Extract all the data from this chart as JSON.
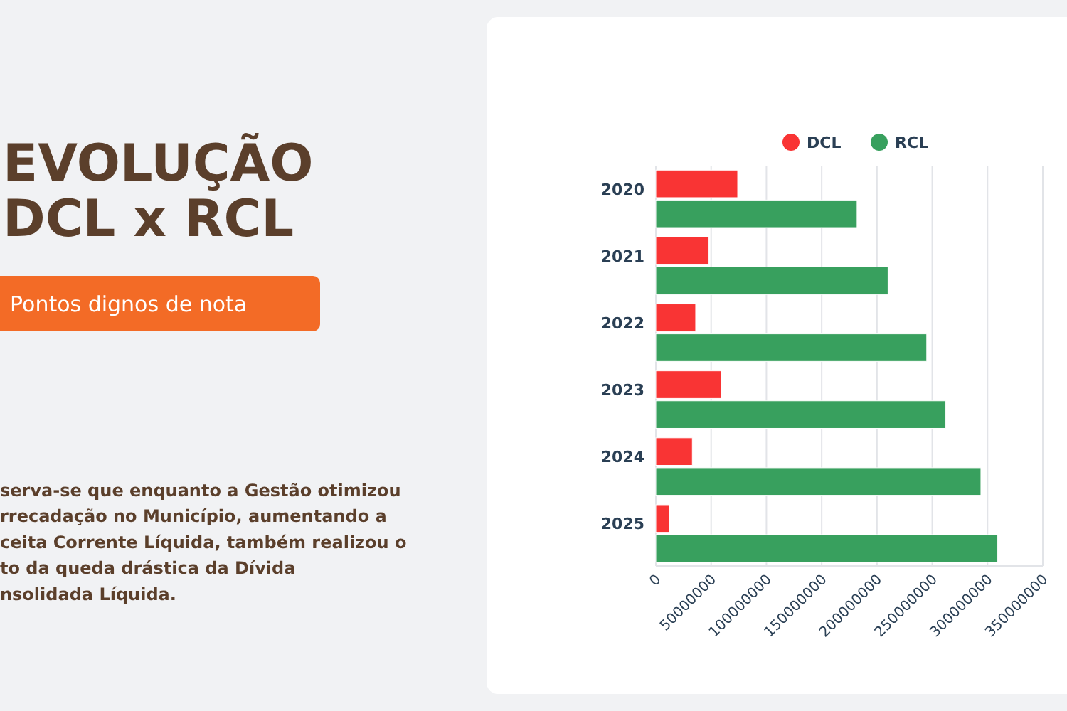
{
  "chart_data": {
    "type": "bar",
    "orientation": "horizontal",
    "title": "EVOLUÇÃO DCL x RCL",
    "categories": [
      "2020",
      "2021",
      "2022",
      "2023",
      "2024",
      "2025"
    ],
    "series": [
      {
        "name": "DCL",
        "color": "#f93434",
        "values": [
          74000000,
          48000000,
          36000000,
          59000000,
          33000000,
          12000000
        ]
      },
      {
        "name": "RCL",
        "color": "#38a05e",
        "values": [
          182000000,
          210000000,
          245000000,
          262000000,
          294000000,
          309000000
        ]
      }
    ],
    "xlim": [
      0,
      350000000
    ],
    "xticks": [
      0,
      50000000,
      100000000,
      150000000,
      200000000,
      250000000,
      300000000,
      350000000
    ],
    "grid": "x",
    "legend": "top",
    "annotations": [
      "Pontos dignos de nota",
      "serva-se que enquanto a Gestão otimizou",
      "rrecadação no Município, aumentando a",
      "ceita Corrente Líquida, também realizou o",
      "to da queda drástica da Dívida",
      "nsolidada Líquida."
    ]
  }
}
